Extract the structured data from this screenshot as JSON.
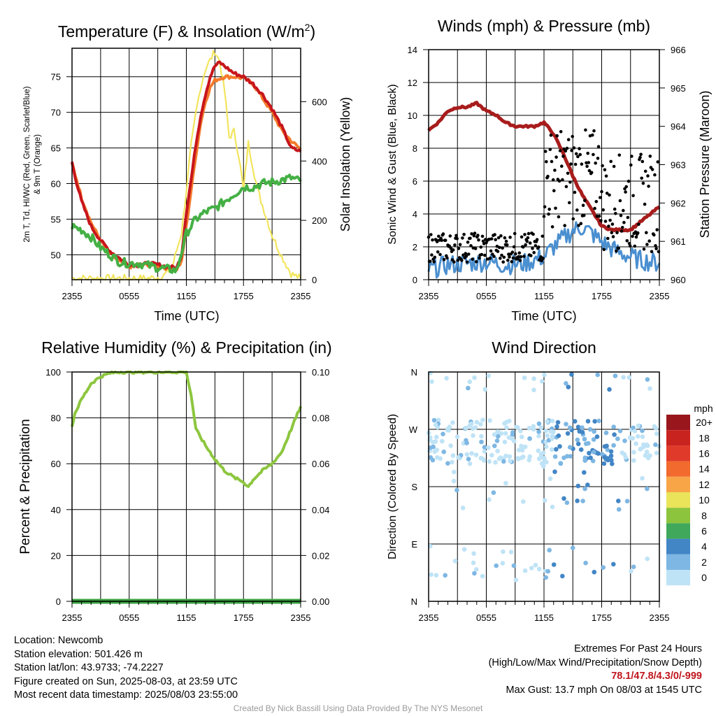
{
  "chart_data": [
    {
      "id": "temperature",
      "type": "line",
      "title": "Temperature (F) & Insolation (W/m",
      "title_sup": "2",
      "title_end": ")",
      "xlabel": "Time (UTC)",
      "ylabel_lines": [
        "2m T, Td, HI/WC (Red, Green, Scarlet/Blue)",
        "& 9m T (Orange)"
      ],
      "ylabel_right": "Solar Insolation (Yellow)",
      "x_ticks": [
        "2355",
        "0555",
        "1155",
        "1755",
        "2355"
      ],
      "ylim": [
        46.5,
        79
      ],
      "y_ticks": [
        50,
        55,
        60,
        65,
        70,
        75
      ],
      "ylim_right": [
        0,
        780
      ],
      "y_ticks_right": [
        0,
        200,
        400,
        600
      ],
      "x_hours": [
        0,
        24
      ],
      "series": [
        {
          "color": "#c7161c",
          "points": [
            [
              0,
              63
            ],
            [
              0.5,
              60
            ],
            [
              1,
              57.5
            ],
            [
              2,
              54
            ],
            [
              3,
              52
            ],
            [
              4,
              50.5
            ],
            [
              5,
              49.5
            ],
            [
              6,
              48.6
            ],
            [
              7,
              48.5
            ],
            [
              8,
              48.8
            ],
            [
              9,
              48.6
            ],
            [
              10,
              48.3
            ],
            [
              11,
              48.2
            ],
            [
              11.5,
              50
            ],
            [
              12,
              56
            ],
            [
              12.5,
              60.5
            ],
            [
              13,
              65.5
            ],
            [
              13.5,
              69.5
            ],
            [
              14,
              72.5
            ],
            [
              14.5,
              75
            ],
            [
              15,
              76.5
            ],
            [
              15.5,
              77
            ],
            [
              16,
              76.5
            ],
            [
              16.5,
              76
            ],
            [
              17,
              75.5
            ],
            [
              18,
              75
            ],
            [
              18.5,
              74.5
            ],
            [
              19,
              74
            ],
            [
              20,
              72.5
            ],
            [
              21,
              70.5
            ],
            [
              22,
              68
            ],
            [
              23,
              65
            ],
            [
              24,
              64.5
            ]
          ]
        },
        {
          "color": "#f47b2b",
          "points": [
            [
              0,
              62.8
            ],
            [
              0.5,
              60.5
            ],
            [
              1,
              58
            ],
            [
              2,
              54.5
            ],
            [
              3,
              52
            ],
            [
              4,
              50.2
            ],
            [
              5,
              49
            ],
            [
              6,
              48.3
            ],
            [
              7,
              48.6
            ],
            [
              8,
              48.6
            ],
            [
              9,
              48.4
            ],
            [
              10,
              48.1
            ],
            [
              11,
              48
            ],
            [
              11.5,
              49
            ],
            [
              12,
              54
            ],
            [
              12.5,
              59
            ],
            [
              13,
              64
            ],
            [
              13.5,
              68.5
            ],
            [
              14,
              71.5
            ],
            [
              14.5,
              73.5
            ],
            [
              15,
              74.5
            ],
            [
              16,
              75
            ],
            [
              17,
              75
            ],
            [
              18,
              74.8
            ],
            [
              19,
              74
            ],
            [
              20,
              72
            ],
            [
              21,
              70
            ],
            [
              22,
              67.5
            ],
            [
              23,
              66
            ],
            [
              24,
              64.8
            ]
          ]
        },
        {
          "color": "#44b044",
          "points": [
            [
              0,
              54
            ],
            [
              1,
              53.5
            ],
            [
              2,
              52.5
            ],
            [
              3,
              51
            ],
            [
              4,
              50
            ],
            [
              5,
              49
            ],
            [
              6,
              48.8
            ],
            [
              7,
              48.8
            ],
            [
              8,
              48.5
            ],
            [
              9,
              48.2
            ],
            [
              10,
              48
            ],
            [
              11,
              47.8
            ],
            [
              12,
              53
            ],
            [
              13,
              55
            ],
            [
              14,
              56
            ],
            [
              15,
              56.5
            ],
            [
              16,
              57.5
            ],
            [
              17,
              58.5
            ],
            [
              18,
              59.5
            ],
            [
              19,
              59.5
            ],
            [
              20,
              60
            ],
            [
              21,
              60.2
            ],
            [
              22,
              60.5
            ],
            [
              23,
              60.8
            ],
            [
              24,
              60.3
            ]
          ]
        },
        {
          "color": "#f2e55e",
          "axis": "right",
          "points": [
            [
              0,
              5
            ],
            [
              5,
              5
            ],
            [
              8,
              5
            ],
            [
              9.5,
              10
            ],
            [
              10.5,
              40
            ],
            [
              11.5,
              160
            ],
            [
              12,
              300
            ],
            [
              12.5,
              450
            ],
            [
              13,
              560
            ],
            [
              13.5,
              650
            ],
            [
              14,
              710
            ],
            [
              14.5,
              740
            ],
            [
              15,
              770
            ],
            [
              15.5,
              735
            ],
            [
              16,
              640
            ],
            [
              16.5,
              480
            ],
            [
              17,
              500
            ],
            [
              17.5,
              420
            ],
            [
              18,
              300
            ],
            [
              18.5,
              460
            ],
            [
              19,
              380
            ],
            [
              19.5,
              300
            ],
            [
              20,
              250
            ],
            [
              21,
              150
            ],
            [
              22,
              80
            ],
            [
              23,
              20
            ],
            [
              24,
              5
            ]
          ]
        }
      ]
    },
    {
      "id": "winds",
      "type": "line",
      "title": "Winds (mph) & Pressure (mb)",
      "xlabel": "Time (UTC)",
      "ylabel": "Sonic Wind & Gust (Blue, Black)",
      "ylabel_right": "Station Pressure (Maroon)",
      "x_ticks": [
        "2355",
        "0555",
        "1155",
        "1755",
        "2355"
      ],
      "ylim": [
        0,
        14
      ],
      "y_ticks": [
        0,
        2,
        4,
        6,
        8,
        10,
        12,
        14
      ],
      "ylim_right": [
        960,
        966
      ],
      "y_ticks_right": [
        960,
        961,
        962,
        963,
        964,
        965,
        966
      ],
      "series": [
        {
          "color": "#a81c1c",
          "axis": "right",
          "points": [
            [
              0,
              963.9
            ],
            [
              1,
              964.1
            ],
            [
              2,
              964.4
            ],
            [
              3,
              964.5
            ],
            [
              4,
              964.5
            ],
            [
              5,
              964.6
            ],
            [
              6,
              964.4
            ],
            [
              7,
              964.3
            ],
            [
              8,
              964.1
            ],
            [
              9,
              964
            ],
            [
              10,
              964
            ],
            [
              11,
              964
            ],
            [
              12,
              964.1
            ],
            [
              13,
              963.8
            ],
            [
              14,
              963.3
            ],
            [
              15,
              962.7
            ],
            [
              16,
              962.2
            ],
            [
              17,
              961.8
            ],
            [
              18,
              961.4
            ],
            [
              19,
              961.3
            ],
            [
              20,
              961.3
            ],
            [
              21,
              961.3
            ],
            [
              22,
              961.5
            ],
            [
              23,
              961.7
            ],
            [
              24,
              961.9
            ]
          ]
        },
        {
          "color": "#4a8fd0",
          "points": [
            [
              0,
              0.6
            ],
            [
              2,
              0.9
            ],
            [
              4,
              1.0
            ],
            [
              6,
              1.1
            ],
            [
              8,
              0.9
            ],
            [
              10,
              1.0
            ],
            [
              12,
              1.4
            ],
            [
              13,
              2.0
            ],
            [
              14,
              2.5
            ],
            [
              15,
              3.0
            ],
            [
              16,
              3.2
            ],
            [
              17,
              2.8
            ],
            [
              18,
              2.3
            ],
            [
              19,
              1.9
            ],
            [
              20,
              1.6
            ],
            [
              21,
              1.4
            ],
            [
              22,
              1.2
            ],
            [
              23,
              1.1
            ],
            [
              24,
              1.0
            ]
          ]
        }
      ]
    },
    {
      "id": "humidity",
      "type": "line",
      "title": "Relative Humidity (%) & Precipitation (in)",
      "ylabel": "Percent & Precipitation",
      "x_ticks": [
        "2355",
        "0555",
        "1155",
        "1755",
        "2355"
      ],
      "ylim": [
        0,
        100
      ],
      "y_ticks": [
        0,
        20,
        40,
        60,
        80,
        100
      ],
      "ylim_right": [
        0,
        0.1
      ],
      "y_ticks_right": [
        "0.00",
        "0.02",
        "0.04",
        "0.06",
        "0.08",
        "0.10"
      ],
      "series": [
        {
          "color": "#8dc63f",
          "points": [
            [
              0,
              76
            ],
            [
              0.3,
              82
            ],
            [
              1,
              88
            ],
            [
              2,
              95
            ],
            [
              3,
              98
            ],
            [
              4,
              99.5
            ],
            [
              5,
              100
            ],
            [
              6,
              100
            ],
            [
              7,
              100
            ],
            [
              8,
              100
            ],
            [
              9,
              100
            ],
            [
              10,
              100
            ],
            [
              11,
              100
            ],
            [
              12,
              100
            ],
            [
              12.5,
              90
            ],
            [
              13,
              75
            ],
            [
              14,
              68
            ],
            [
              15,
              62
            ],
            [
              16,
              57
            ],
            [
              17,
              54
            ],
            [
              18,
              52
            ],
            [
              18.5,
              50
            ],
            [
              19,
              53
            ],
            [
              20,
              57
            ],
            [
              21,
              60
            ],
            [
              22,
              65
            ],
            [
              23,
              75
            ],
            [
              24,
              85
            ]
          ]
        },
        {
          "color": "#3aa040",
          "points": [
            [
              0,
              0
            ],
            [
              24,
              0
            ]
          ]
        }
      ]
    },
    {
      "id": "direction",
      "type": "scatter",
      "title": "Wind Direction",
      "ylabel": "Direction (Colored By Speed)",
      "x_ticks": [
        "2355",
        "0555",
        "1155",
        "1755",
        "2355"
      ],
      "y_ticks": [
        "N",
        "E",
        "S",
        "W",
        "N"
      ],
      "ylim": [
        0,
        360
      ],
      "colorbar": {
        "title": "mph",
        "labels": [
          "20+",
          "18",
          "16",
          "14",
          "12",
          "10",
          "8",
          "6",
          "4",
          "2",
          "0"
        ],
        "colors": [
          "#99161c",
          "#c9231f",
          "#e03b2a",
          "#f26a2e",
          "#f8a548",
          "#e9e45a",
          "#8cc43e",
          "#3fa85b",
          "#4286c6",
          "#7eb7e3",
          "#bfe3f6"
        ]
      },
      "speed_colors": [
        "#bfe3f6",
        "#7eb7e3",
        "#4286c6"
      ]
    }
  ],
  "info": {
    "location": "Location: Newcomb",
    "elevation": "Station elevation: 501.426 m",
    "latlon": "Station lat/lon: 43.9733; -74.2227",
    "created": "Figure created on Sun, 2025-08-03, at 23:59 UTC",
    "recent": "Most recent data timestamp: 2025/08/03 23:55:00"
  },
  "extremes": {
    "title": "Extremes For Past 24 Hours",
    "subtitle": "(High/Low/Max Wind/Precipitation/Snow Depth)",
    "values": "78.1/47.8/4.3/0/-999",
    "gust": "Max Gust: 13.7 mph On 08/03 at 1545 UTC"
  },
  "credit": "Created By Nick Bassill Using Data Provided By The NYS Mesonet"
}
